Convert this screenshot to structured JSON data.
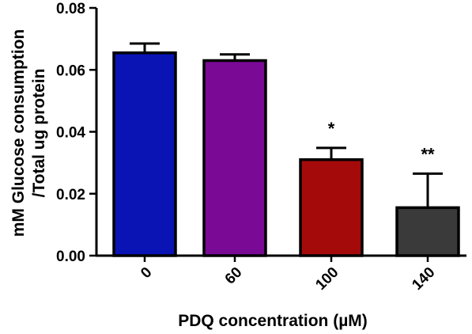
{
  "chart_data": {
    "type": "bar",
    "categories": [
      "0",
      "60",
      "100",
      "140"
    ],
    "values": [
      0.0655,
      0.063,
      0.031,
      0.0155
    ],
    "errors": [
      0.003,
      0.002,
      0.0038,
      0.011
    ],
    "annotations": [
      "",
      "",
      "*",
      "**"
    ],
    "colors": [
      "#0a14b4",
      "#7a0a96",
      "#a50a0a",
      "#3a3a3a"
    ],
    "ylabel_line1": "mM Glucose consumption",
    "ylabel_line2": "/Total ug protein",
    "xlabel": "PDQ concentration (µM)",
    "ylim": [
      0,
      0.08
    ],
    "yticks": [
      0.0,
      0.02,
      0.04,
      0.06,
      0.08
    ],
    "ytick_labels": [
      "0.00",
      "0.02",
      "0.04",
      "0.06",
      "0.08"
    ],
    "grid": false,
    "legend": "none"
  }
}
